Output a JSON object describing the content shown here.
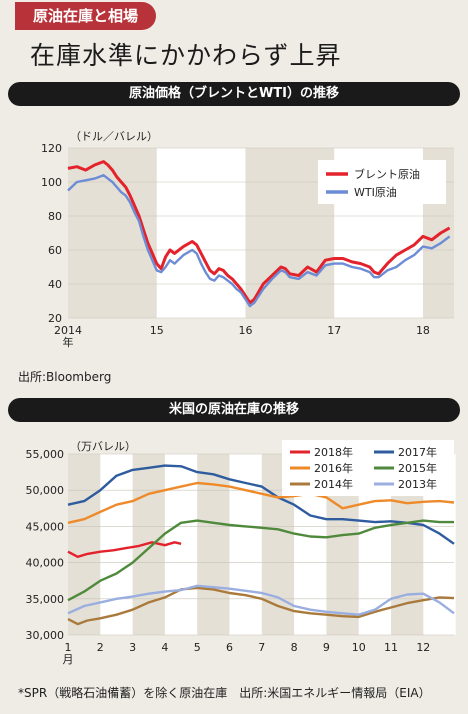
{
  "header": {
    "tag": "原油在庫と相場",
    "title": "在庫水準にかかわらず上昇"
  },
  "chart_data": [
    {
      "type": "line",
      "title": "原油価格（ブレントとWTI）の推移",
      "unit_label": "（ドル／バレル）",
      "ylim": [
        20,
        120
      ],
      "y_ticks": [
        20,
        40,
        60,
        80,
        100,
        120
      ],
      "x_labels": [
        "2014\n年",
        "15",
        "16",
        "17",
        "18"
      ],
      "x_label_positions": [
        2014,
        2015,
        2016,
        2017,
        2018
      ],
      "legend": "top-right",
      "source": "出所:Bloomberg",
      "series": [
        {
          "name": "ブレント原油",
          "color": "#e3222b",
          "x": [
            2014.0,
            2014.1,
            2014.2,
            2014.3,
            2014.4,
            2014.45,
            2014.5,
            2014.55,
            2014.6,
            2014.65,
            2014.7,
            2014.75,
            2014.8,
            2014.85,
            2014.9,
            2014.95,
            2015.0,
            2015.05,
            2015.1,
            2015.15,
            2015.2,
            2015.3,
            2015.4,
            2015.45,
            2015.5,
            2015.55,
            2015.6,
            2015.65,
            2015.7,
            2015.75,
            2015.8,
            2015.85,
            2015.9,
            2015.95,
            2016.0,
            2016.05,
            2016.1,
            2016.2,
            2016.3,
            2016.4,
            2016.45,
            2016.5,
            2016.6,
            2016.7,
            2016.8,
            2016.9,
            2017.0,
            2017.1,
            2017.2,
            2017.3,
            2017.4,
            2017.45,
            2017.5,
            2017.6,
            2017.7,
            2017.8,
            2017.9,
            2018.0,
            2018.1,
            2018.2,
            2018.3
          ],
          "y": [
            108,
            109,
            107,
            110,
            112,
            110,
            107,
            103,
            100,
            97,
            92,
            86,
            80,
            72,
            64,
            58,
            52,
            49,
            56,
            60,
            58,
            62,
            65,
            63,
            58,
            53,
            48,
            46,
            49,
            48,
            45,
            43,
            40,
            37,
            33,
            29,
            31,
            40,
            45,
            50,
            49,
            46,
            45,
            50,
            47,
            54,
            55,
            55,
            53,
            52,
            50,
            47,
            46,
            52,
            57,
            60,
            63,
            68,
            66,
            70,
            73
          ]
        },
        {
          "name": "WTI原油",
          "color": "#6c8cd5",
          "x": [
            2014.0,
            2014.1,
            2014.2,
            2014.3,
            2014.4,
            2014.45,
            2014.5,
            2014.55,
            2014.6,
            2014.65,
            2014.7,
            2014.75,
            2014.8,
            2014.85,
            2014.9,
            2014.95,
            2015.0,
            2015.05,
            2015.1,
            2015.15,
            2015.2,
            2015.3,
            2015.4,
            2015.45,
            2015.5,
            2015.55,
            2015.6,
            2015.65,
            2015.7,
            2015.75,
            2015.8,
            2015.85,
            2015.9,
            2015.95,
            2016.0,
            2016.05,
            2016.1,
            2016.2,
            2016.3,
            2016.4,
            2016.45,
            2016.5,
            2016.6,
            2016.7,
            2016.8,
            2016.9,
            2017.0,
            2017.1,
            2017.2,
            2017.3,
            2017.4,
            2017.45,
            2017.5,
            2017.6,
            2017.7,
            2017.8,
            2017.9,
            2018.0,
            2018.1,
            2018.2,
            2018.3
          ],
          "y": [
            95,
            100,
            101,
            102,
            104,
            102,
            100,
            97,
            94,
            92,
            88,
            82,
            77,
            68,
            60,
            54,
            48,
            47,
            50,
            54,
            52,
            57,
            60,
            58,
            52,
            47,
            43,
            42,
            45,
            44,
            42,
            40,
            37,
            35,
            31,
            27,
            29,
            37,
            43,
            48,
            47,
            44,
            43,
            47,
            45,
            51,
            52,
            52,
            50,
            49,
            47,
            44,
            44,
            48,
            50,
            54,
            57,
            62,
            61,
            64,
            68
          ]
        }
      ]
    },
    {
      "type": "line",
      "title": "米国の原油在庫の推移",
      "unit_label": "（万バレル）",
      "ylim": [
        30000,
        55000
      ],
      "y_ticks": [
        "30,000",
        "35,000",
        "40,000",
        "45,000",
        "50,000",
        "55,000"
      ],
      "y_tick_values": [
        30000,
        35000,
        40000,
        45000,
        50000,
        55000
      ],
      "x_labels": [
        "1\n月",
        "2",
        "3",
        "4",
        "5",
        "6",
        "7",
        "8",
        "9",
        "10",
        "11",
        "12"
      ],
      "legend": "top-right",
      "footnote": "*SPR（戦略石油備蓄）を除く原油在庫　出所:米国エネルギー情報局（EIA）",
      "series": [
        {
          "name": "2018年",
          "color": "#e3222b",
          "x": [
            1.0,
            1.3,
            1.6,
            2.0,
            2.4,
            2.8,
            3.2,
            3.6,
            4.0,
            4.3,
            4.5
          ],
          "y": [
            41500,
            40800,
            41200,
            41500,
            41700,
            42000,
            42300,
            42800,
            42400,
            42800,
            42600
          ]
        },
        {
          "name": "2017年",
          "color": "#2e5c9e",
          "x": [
            1.0,
            1.5,
            2.0,
            2.5,
            3.0,
            3.5,
            4.0,
            4.5,
            5.0,
            5.5,
            6.0,
            6.5,
            7.0,
            7.5,
            8.0,
            8.5,
            9.0,
            9.5,
            10.0,
            10.5,
            11.0,
            11.5,
            12.0,
            12.5,
            12.95
          ],
          "y": [
            48000,
            48500,
            50000,
            52000,
            52800,
            53100,
            53400,
            53300,
            52500,
            52200,
            51500,
            51000,
            50500,
            49000,
            48000,
            46500,
            46000,
            46000,
            45800,
            45600,
            45700,
            45500,
            45200,
            44000,
            42600
          ]
        },
        {
          "name": "2016年",
          "color": "#ee8a2a",
          "x": [
            1.0,
            1.5,
            2.0,
            2.5,
            3.0,
            3.5,
            4.0,
            4.5,
            5.0,
            5.5,
            6.0,
            6.5,
            7.0,
            7.5,
            8.0,
            8.5,
            9.0,
            9.5,
            10.0,
            10.5,
            11.0,
            11.5,
            12.0,
            12.5,
            12.95
          ],
          "y": [
            45500,
            46000,
            47000,
            48000,
            48500,
            49500,
            50000,
            50500,
            51000,
            50800,
            50500,
            50000,
            49500,
            49000,
            49200,
            49500,
            49000,
            47500,
            48000,
            48500,
            48600,
            48200,
            48400,
            48500,
            48300
          ]
        },
        {
          "name": "2015年",
          "color": "#4f8a3c",
          "x": [
            1.0,
            1.5,
            2.0,
            2.5,
            3.0,
            3.5,
            4.0,
            4.5,
            5.0,
            5.5,
            6.0,
            6.5,
            7.0,
            7.5,
            8.0,
            8.5,
            9.0,
            9.5,
            10.0,
            10.5,
            11.0,
            11.5,
            12.0,
            12.5,
            12.95
          ],
          "y": [
            34800,
            36000,
            37500,
            38500,
            40000,
            42000,
            44000,
            45500,
            45800,
            45500,
            45200,
            45000,
            44800,
            44600,
            44000,
            43600,
            43500,
            43800,
            44000,
            44800,
            45200,
            45500,
            45800,
            45600,
            45600
          ]
        },
        {
          "name": "2014年",
          "color": "#a97a3c",
          "x": [
            1.0,
            1.3,
            1.6,
            2.0,
            2.5,
            3.0,
            3.5,
            4.0,
            4.5,
            5.0,
            5.5,
            6.0,
            6.5,
            7.0,
            7.5,
            8.0,
            8.5,
            9.0,
            9.5,
            10.0,
            10.5,
            11.0,
            11.5,
            12.0,
            12.5,
            12.95
          ],
          "y": [
            32200,
            31500,
            32000,
            32300,
            32800,
            33500,
            34500,
            35200,
            36300,
            36500,
            36300,
            35800,
            35500,
            35000,
            34000,
            33300,
            33000,
            32800,
            32600,
            32500,
            33200,
            33800,
            34400,
            34800,
            35200,
            35100
          ]
        },
        {
          "name": "2013年",
          "color": "#9aaee0",
          "x": [
            1.0,
            1.5,
            2.0,
            2.5,
            3.0,
            3.5,
            4.0,
            4.5,
            5.0,
            5.5,
            6.0,
            6.5,
            7.0,
            7.5,
            8.0,
            8.5,
            9.0,
            9.5,
            10.0,
            10.5,
            11.0,
            11.5,
            12.0,
            12.5,
            12.95
          ],
          "y": [
            33000,
            34000,
            34500,
            35000,
            35300,
            35700,
            36000,
            36200,
            36800,
            36600,
            36400,
            36100,
            35800,
            35200,
            34000,
            33500,
            33200,
            33000,
            32800,
            33500,
            35000,
            35600,
            35700,
            34500,
            33000
          ]
        }
      ]
    }
  ]
}
